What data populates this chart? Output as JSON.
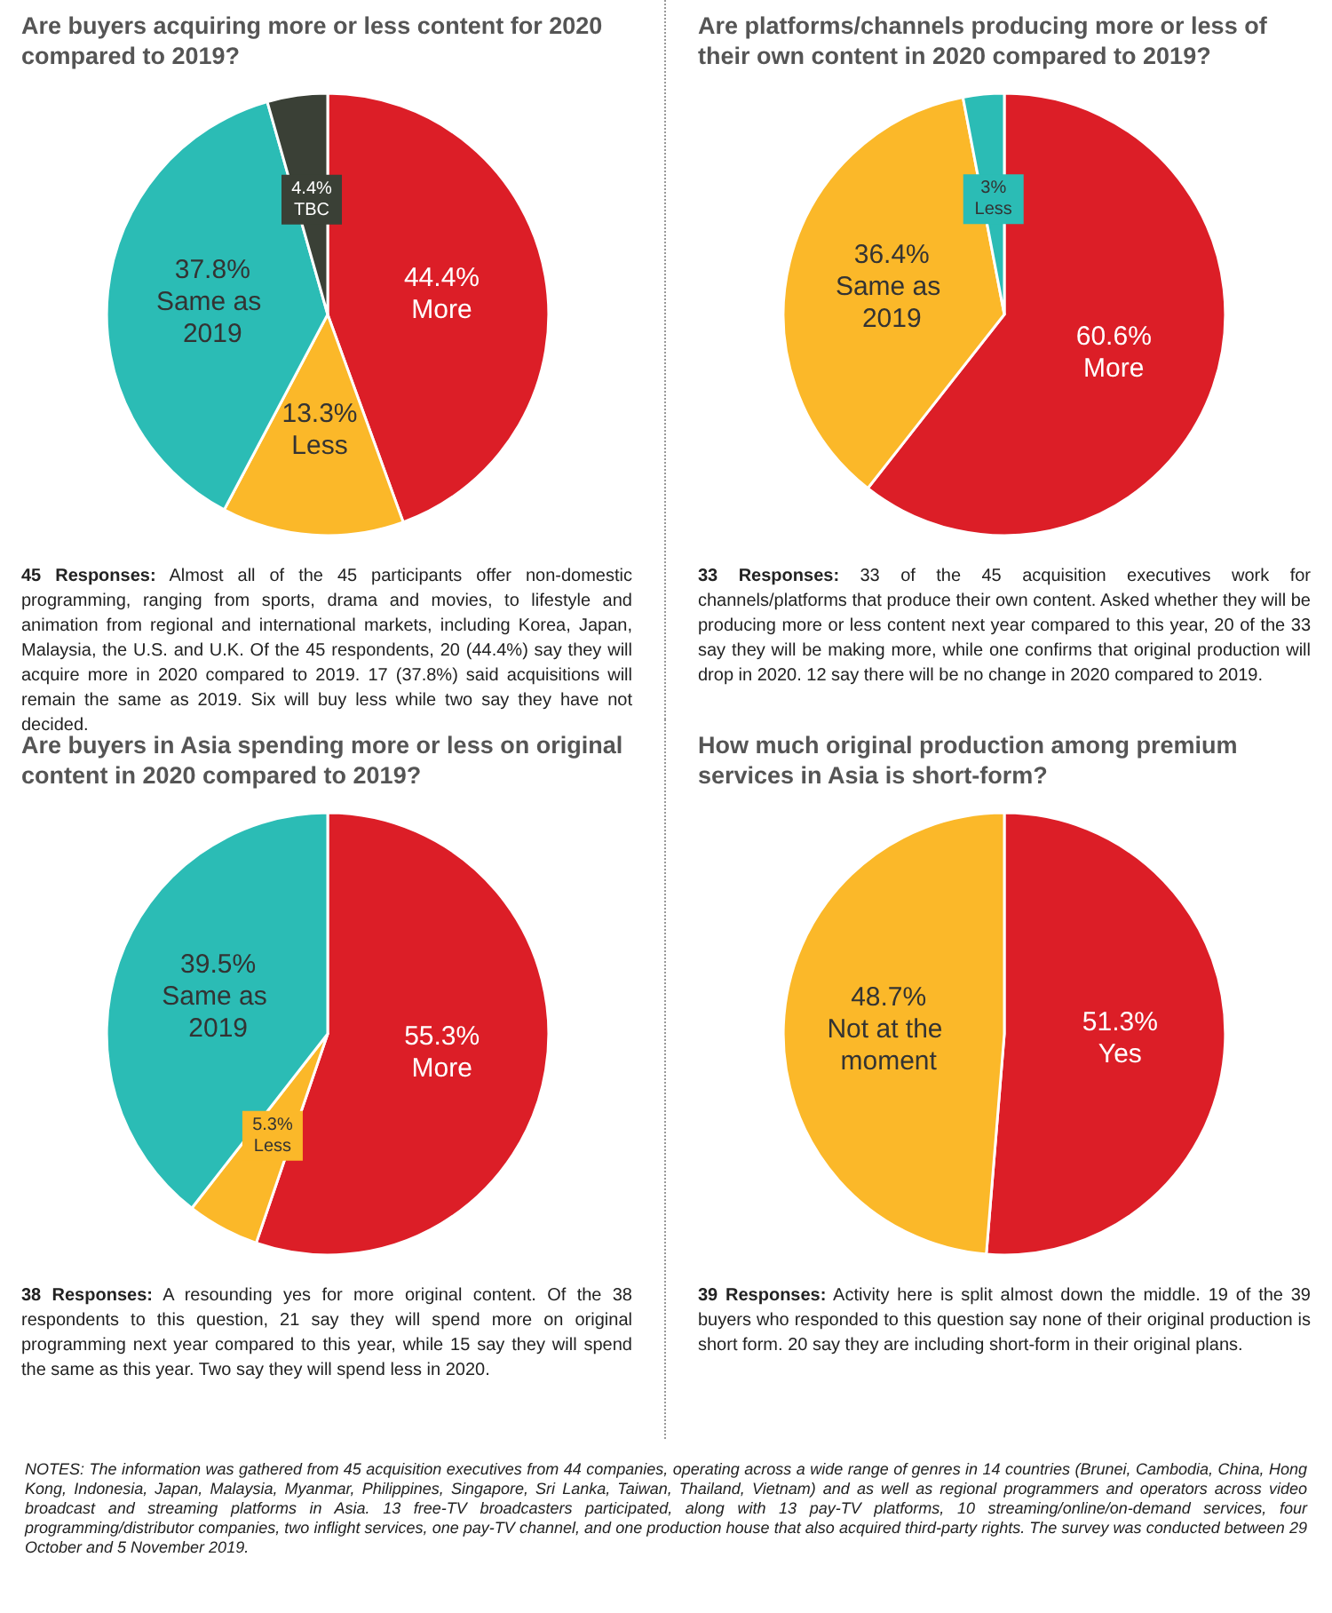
{
  "chart_data": [
    {
      "type": "pie",
      "title": "Are buyers acquiring more or less content for 2020 compared to 2019?",
      "categories": [
        "More",
        "Less",
        "Same as 2019",
        "TBC"
      ],
      "values": [
        44.4,
        13.3,
        37.8,
        4.4
      ],
      "value_labels": [
        "44.4%",
        "13.3%",
        "37.8%",
        "4.4%"
      ],
      "colors": [
        "#dc1e27",
        "#fbb829",
        "#2bbcb5",
        "#3a4036"
      ],
      "annotations": [
        "45 Responses: Almost all of the 45 participants offer non-domestic programming, ranging from sports, drama and movies, to lifestyle and animation from regional and international markets, including Korea, Japan, Malaysia, the U.S. and U.K. Of the 45 respondents, 20 (44.4%) say they will acquire more in 2020 compared to 2019. 17 (37.8%) said acquisitions will remain the same as 2019. Six will buy less while two say they have not decided."
      ],
      "legend": false
    },
    {
      "type": "pie",
      "title": "Are platforms/channels producing more or less of their own content in 2020 compared to 2019?",
      "categories": [
        "More",
        "Same as 2019",
        "Less"
      ],
      "values": [
        60.6,
        36.4,
        3
      ],
      "value_labels": [
        "60.6%",
        "36.4%",
        "3%"
      ],
      "colors": [
        "#dc1e27",
        "#fbb829",
        "#2bbcb5"
      ],
      "annotations": [
        "33 Responses: 33 of the 45 acquisition executives work for channels/platforms that produce their own content. Asked whether they will be producing more or less content next year compared to this year, 20 of the 33 say they will be making more, while one confirms that original production will drop in 2020. 12 say there will be no change in 2020 compared to 2019."
      ],
      "legend": false
    },
    {
      "type": "pie",
      "title": "Are buyers in Asia spending more or less on original content in 2020 compared to 2019?",
      "categories": [
        "More",
        "Less",
        "Same as 2019"
      ],
      "values": [
        55.3,
        5.3,
        39.5
      ],
      "value_labels": [
        "55.3%",
        "5.3%",
        "39.5%"
      ],
      "colors": [
        "#dc1e27",
        "#fbb829",
        "#2bbcb5"
      ],
      "annotations": [
        "38 Responses: A resounding yes for more original content. Of the 38 respondents to this question, 21 say they will spend more on original programming next year compared to this year, while 15 say they will spend the same as this year. Two say they will spend less in 2020."
      ],
      "legend": false
    },
    {
      "type": "pie",
      "title": "How much original production among premium services in Asia is short-form?",
      "categories": [
        "Yes",
        "Not at the moment"
      ],
      "values": [
        51.3,
        48.7
      ],
      "value_labels": [
        "51.3%",
        "48.7%"
      ],
      "colors": [
        "#dc1e27",
        "#fbb829"
      ],
      "annotations": [
        "39 Responses: Activity here is split almost down the middle. 19 of the 39 buyers who responded to this question say none of their original production is short form. 20 say they are including short-form in their original plans.",
        "NOTES: The information was gathered from 45 acquisition executives from 44 companies, operating across a wide range of genres in 14 countries (Brunei, Cambodia, China, Hong Kong, Indonesia, Japan, Malaysia, Myanmar, Philippines, Singapore, Sri Lanka, Taiwan, Thailand, Vietnam) and as well as regional programmers and operators across video broadcast and streaming platforms in Asia. 13 free-TV broadcasters participated, along with 13 pay-TV platforms, 10 streaming/online/on-demand services, four programming/distributor companies, two inflight services, one pay-TV channel, and one production house that also acquired third-party rights. The survey was conducted between 29 October and 5 November 2019."
      ],
      "legend": false
    }
  ]
}
